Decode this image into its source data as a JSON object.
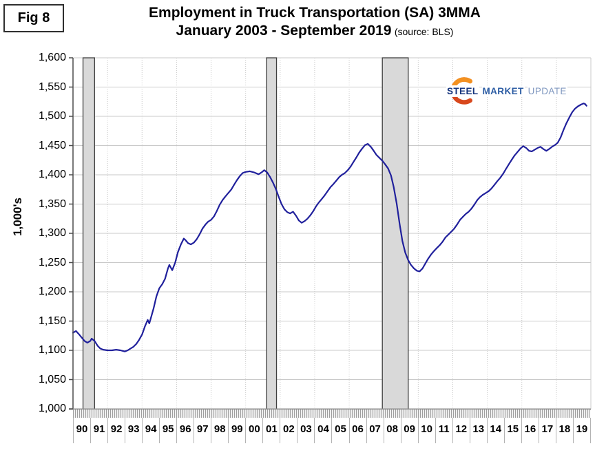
{
  "figure": {
    "badge": "Fig 8"
  },
  "logo": {
    "steel": "STEEL",
    "market": "MARKET",
    "update": "UPDATE",
    "steel_color": "#15357d",
    "market_color": "#2d5da4",
    "update_color": "#7f97bf",
    "crescent_outer": "#d8481d",
    "crescent_inner": "#f39120"
  },
  "chart_data": {
    "type": "line",
    "title": "Employment in Truck Transportation (SA) 3MMA",
    "subtitle": "January 2003 - September 2019",
    "source_note": "(source: BLS)",
    "ylabel": "1,000's",
    "ylim": [
      1000,
      1600
    ],
    "ytick_step": 50,
    "ytick_labels": [
      "1,000",
      "1,050",
      "1,100",
      "1,150",
      "1,200",
      "1,250",
      "1,300",
      "1,350",
      "1,400",
      "1,450",
      "1,500",
      "1,550",
      "1,600"
    ],
    "xlim": [
      1990,
      2020
    ],
    "xtick_labels": [
      "90",
      "91",
      "92",
      "93",
      "94",
      "95",
      "96",
      "97",
      "98",
      "99",
      "00",
      "01",
      "02",
      "03",
      "04",
      "05",
      "06",
      "07",
      "08",
      "09",
      "10",
      "11",
      "12",
      "13",
      "14",
      "15",
      "16",
      "17",
      "18",
      "19"
    ],
    "grid_x_years": [
      1992,
      1994,
      1996,
      1998,
      2000,
      2002,
      2004,
      2006,
      2008,
      2010,
      2012,
      2014,
      2016,
      2018
    ],
    "grid_color": "#c9c9c9",
    "axis_color": "#4d4d4d",
    "recession_fill": "#d9d9d9",
    "recession_border": "#3f3f3f",
    "legend": "none",
    "recession_bands": [
      [
        1990.58,
        1991.25
      ],
      [
        2001.21,
        2001.79
      ],
      [
        2007.92,
        2009.42
      ]
    ],
    "series": [
      {
        "name": "Truck transportation employment (SA, 3MMA, thousands)",
        "color": "#20209c",
        "points": [
          [
            1990.0,
            1130
          ],
          [
            1990.17,
            1133
          ],
          [
            1990.33,
            1128
          ],
          [
            1990.5,
            1122
          ],
          [
            1990.67,
            1116
          ],
          [
            1990.83,
            1113
          ],
          [
            1991.0,
            1116
          ],
          [
            1991.08,
            1120
          ],
          [
            1991.25,
            1116
          ],
          [
            1991.42,
            1108
          ],
          [
            1991.58,
            1103
          ],
          [
            1991.75,
            1101
          ],
          [
            1992.0,
            1100
          ],
          [
            1992.25,
            1100
          ],
          [
            1992.5,
            1101
          ],
          [
            1992.75,
            1100
          ],
          [
            1993.0,
            1098
          ],
          [
            1993.17,
            1100
          ],
          [
            1993.33,
            1103
          ],
          [
            1993.5,
            1106
          ],
          [
            1993.67,
            1111
          ],
          [
            1993.83,
            1118
          ],
          [
            1994.0,
            1127
          ],
          [
            1994.17,
            1141
          ],
          [
            1994.33,
            1152
          ],
          [
            1994.42,
            1146
          ],
          [
            1994.5,
            1154
          ],
          [
            1994.67,
            1172
          ],
          [
            1994.83,
            1192
          ],
          [
            1995.0,
            1206
          ],
          [
            1995.17,
            1213
          ],
          [
            1995.33,
            1222
          ],
          [
            1995.5,
            1240
          ],
          [
            1995.58,
            1246
          ],
          [
            1995.75,
            1237
          ],
          [
            1995.92,
            1250
          ],
          [
            1996.08,
            1268
          ],
          [
            1996.25,
            1281
          ],
          [
            1996.42,
            1291
          ],
          [
            1996.5,
            1289
          ],
          [
            1996.67,
            1283
          ],
          [
            1996.83,
            1281
          ],
          [
            1997.0,
            1284
          ],
          [
            1997.17,
            1290
          ],
          [
            1997.33,
            1298
          ],
          [
            1997.5,
            1308
          ],
          [
            1997.67,
            1315
          ],
          [
            1997.83,
            1320
          ],
          [
            1998.0,
            1323
          ],
          [
            1998.17,
            1329
          ],
          [
            1998.33,
            1338
          ],
          [
            1998.5,
            1349
          ],
          [
            1998.67,
            1357
          ],
          [
            1998.83,
            1363
          ],
          [
            1999.0,
            1369
          ],
          [
            1999.17,
            1375
          ],
          [
            1999.33,
            1383
          ],
          [
            1999.5,
            1391
          ],
          [
            1999.67,
            1398
          ],
          [
            1999.83,
            1403
          ],
          [
            2000.0,
            1405
          ],
          [
            2000.25,
            1406
          ],
          [
            2000.5,
            1404
          ],
          [
            2000.75,
            1401
          ],
          [
            2000.92,
            1404
          ],
          [
            2001.08,
            1408
          ],
          [
            2001.25,
            1404
          ],
          [
            2001.42,
            1396
          ],
          [
            2001.58,
            1387
          ],
          [
            2001.75,
            1376
          ],
          [
            2001.92,
            1362
          ],
          [
            2002.08,
            1350
          ],
          [
            2002.25,
            1341
          ],
          [
            2002.42,
            1336
          ],
          [
            2002.58,
            1334
          ],
          [
            2002.75,
            1337
          ],
          [
            2002.92,
            1330
          ],
          [
            2003.08,
            1322
          ],
          [
            2003.25,
            1318
          ],
          [
            2003.42,
            1321
          ],
          [
            2003.58,
            1325
          ],
          [
            2003.75,
            1331
          ],
          [
            2003.92,
            1338
          ],
          [
            2004.08,
            1346
          ],
          [
            2004.25,
            1353
          ],
          [
            2004.42,
            1359
          ],
          [
            2004.58,
            1365
          ],
          [
            2004.75,
            1372
          ],
          [
            2004.92,
            1379
          ],
          [
            2005.08,
            1384
          ],
          [
            2005.25,
            1390
          ],
          [
            2005.42,
            1396
          ],
          [
            2005.58,
            1400
          ],
          [
            2005.75,
            1403
          ],
          [
            2005.92,
            1408
          ],
          [
            2006.08,
            1414
          ],
          [
            2006.25,
            1422
          ],
          [
            2006.42,
            1430
          ],
          [
            2006.58,
            1438
          ],
          [
            2006.75,
            1445
          ],
          [
            2006.92,
            1451
          ],
          [
            2007.08,
            1453
          ],
          [
            2007.25,
            1448
          ],
          [
            2007.42,
            1441
          ],
          [
            2007.58,
            1434
          ],
          [
            2007.75,
            1429
          ],
          [
            2007.92,
            1424
          ],
          [
            2008.08,
            1418
          ],
          [
            2008.25,
            1411
          ],
          [
            2008.42,
            1399
          ],
          [
            2008.58,
            1379
          ],
          [
            2008.75,
            1351
          ],
          [
            2008.92,
            1316
          ],
          [
            2009.08,
            1287
          ],
          [
            2009.25,
            1267
          ],
          [
            2009.42,
            1254
          ],
          [
            2009.58,
            1246
          ],
          [
            2009.75,
            1240
          ],
          [
            2009.92,
            1236
          ],
          [
            2010.08,
            1235
          ],
          [
            2010.25,
            1240
          ],
          [
            2010.42,
            1249
          ],
          [
            2010.58,
            1257
          ],
          [
            2010.75,
            1264
          ],
          [
            2010.92,
            1270
          ],
          [
            2011.08,
            1275
          ],
          [
            2011.25,
            1280
          ],
          [
            2011.42,
            1286
          ],
          [
            2011.58,
            1293
          ],
          [
            2011.75,
            1298
          ],
          [
            2011.92,
            1303
          ],
          [
            2012.08,
            1308
          ],
          [
            2012.25,
            1315
          ],
          [
            2012.42,
            1323
          ],
          [
            2012.58,
            1328
          ],
          [
            2012.75,
            1333
          ],
          [
            2012.92,
            1337
          ],
          [
            2013.08,
            1342
          ],
          [
            2013.25,
            1349
          ],
          [
            2013.42,
            1357
          ],
          [
            2013.58,
            1362
          ],
          [
            2013.75,
            1366
          ],
          [
            2013.92,
            1369
          ],
          [
            2014.08,
            1372
          ],
          [
            2014.25,
            1377
          ],
          [
            2014.42,
            1383
          ],
          [
            2014.58,
            1389
          ],
          [
            2014.75,
            1395
          ],
          [
            2014.92,
            1402
          ],
          [
            2015.08,
            1410
          ],
          [
            2015.25,
            1418
          ],
          [
            2015.42,
            1426
          ],
          [
            2015.58,
            1433
          ],
          [
            2015.75,
            1439
          ],
          [
            2015.92,
            1445
          ],
          [
            2016.08,
            1449
          ],
          [
            2016.25,
            1446
          ],
          [
            2016.42,
            1441
          ],
          [
            2016.58,
            1440
          ],
          [
            2016.75,
            1443
          ],
          [
            2016.92,
            1446
          ],
          [
            2017.08,
            1448
          ],
          [
            2017.25,
            1444
          ],
          [
            2017.42,
            1441
          ],
          [
            2017.58,
            1444
          ],
          [
            2017.75,
            1448
          ],
          [
            2017.92,
            1451
          ],
          [
            2018.08,
            1455
          ],
          [
            2018.25,
            1464
          ],
          [
            2018.42,
            1477
          ],
          [
            2018.58,
            1488
          ],
          [
            2018.75,
            1498
          ],
          [
            2018.92,
            1507
          ],
          [
            2019.08,
            1513
          ],
          [
            2019.25,
            1517
          ],
          [
            2019.42,
            1520
          ],
          [
            2019.58,
            1522
          ],
          [
            2019.67,
            1521
          ],
          [
            2019.75,
            1518
          ]
        ]
      }
    ]
  }
}
